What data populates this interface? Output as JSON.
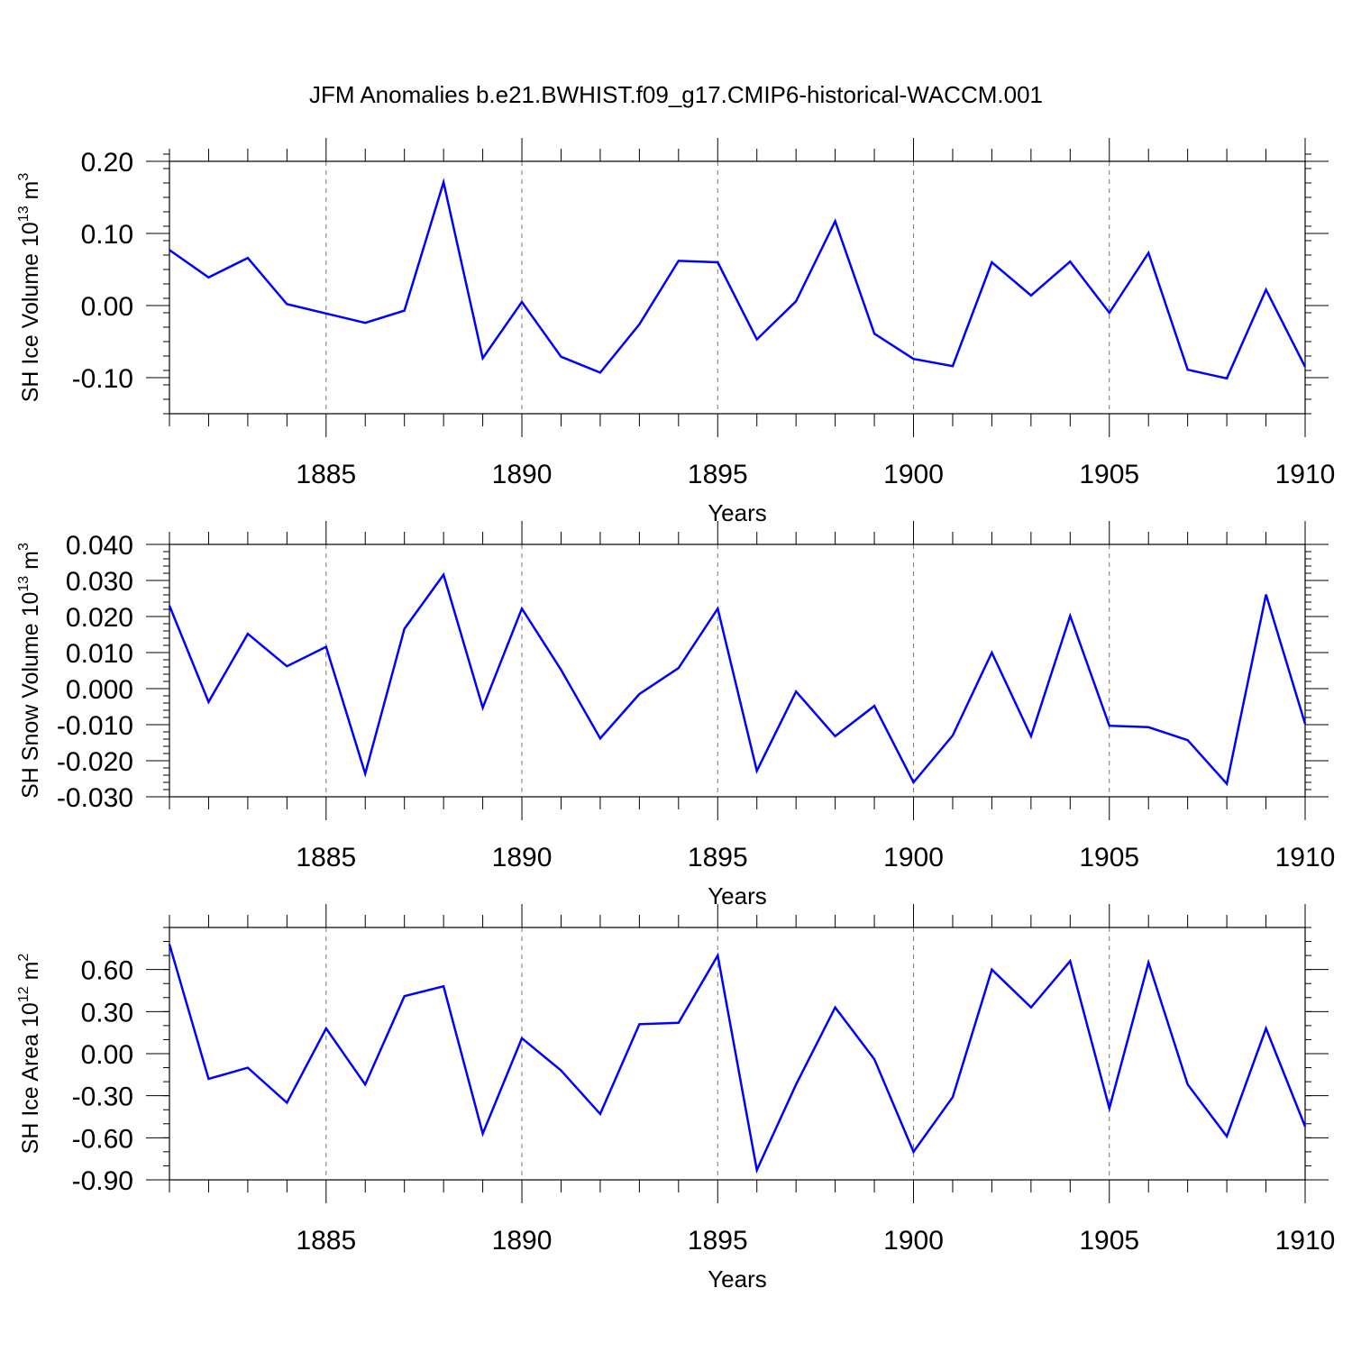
{
  "chart_data": {
    "title": "JFM Anomalies b.e21.BWHIST.f09_g17.CMIP6-historical-WACCM.001",
    "type": "line",
    "x": [
      1881,
      1882,
      1883,
      1884,
      1885,
      1886,
      1887,
      1888,
      1889,
      1890,
      1891,
      1892,
      1893,
      1894,
      1895,
      1896,
      1897,
      1898,
      1899,
      1900,
      1901,
      1902,
      1903,
      1904,
      1905,
      1906,
      1907,
      1908,
      1909,
      1910
    ],
    "xlim": [
      1881,
      1910
    ],
    "x_major_ticks": [
      1885,
      1890,
      1895,
      1900,
      1905,
      1910
    ],
    "grid": "vertical dashed at major x ticks",
    "panels": [
      {
        "key": "ice_volume",
        "xlabel": "Years",
        "ylabel_main": "SH Ice Volume 10",
        "ylabel_exp": "13",
        "ylabel_unit": " m",
        "ylabel_unit_exp": "3",
        "ylim": [
          -0.15,
          0.2
        ],
        "yticks": [
          -0.1,
          0.0,
          0.1,
          0.2
        ],
        "ytick_labels": [
          "-0.10",
          "0.00",
          "0.10",
          "0.20"
        ],
        "minor_step": 0.02,
        "series": [
          {
            "name": "SH Ice Volume",
            "color": "#0000ff",
            "values": [
              0.077,
              0.039,
              0.066,
              0.002,
              -0.011,
              -0.024,
              -0.007,
              0.171,
              -0.073,
              0.005,
              -0.071,
              -0.093,
              -0.026,
              0.062,
              0.06,
              -0.047,
              0.006,
              0.117,
              -0.039,
              -0.074,
              -0.084,
              0.06,
              0.014,
              0.061,
              -0.01,
              0.073,
              -0.089,
              -0.101,
              0.022,
              -0.085
            ]
          }
        ]
      },
      {
        "key": "snow_volume",
        "xlabel": "Years",
        "ylabel_main": "SH Snow Volume 10",
        "ylabel_exp": "13",
        "ylabel_unit": " m",
        "ylabel_unit_exp": "3",
        "ylim": [
          -0.03,
          0.04
        ],
        "yticks": [
          -0.03,
          -0.02,
          -0.01,
          0.0,
          0.01,
          0.02,
          0.03,
          0.04
        ],
        "ytick_labels": [
          "-0.030",
          "-0.020",
          "-0.010",
          "0.000",
          "0.010",
          "0.020",
          "0.030",
          "0.040"
        ],
        "minor_step": 0.002,
        "series": [
          {
            "name": "SH Snow Volume",
            "color": "#0000ff",
            "values": [
              0.023,
              -0.0037,
              0.0152,
              0.0062,
              0.0116,
              -0.0236,
              0.0166,
              0.0316,
              -0.0053,
              0.0222,
              0.0052,
              -0.0138,
              -0.0015,
              0.0057,
              0.0222,
              -0.0228,
              -0.0008,
              -0.0132,
              -0.0048,
              -0.026,
              -0.013,
              0.01,
              -0.0132,
              0.0202,
              -0.0103,
              -0.0107,
              -0.0143,
              -0.0264,
              0.0261,
              -0.0098
            ]
          }
        ]
      },
      {
        "key": "ice_area",
        "xlabel": "Years",
        "ylabel_main": "SH Ice Area 10",
        "ylabel_exp": "12",
        "ylabel_unit": " m",
        "ylabel_unit_exp": "2",
        "ylim": [
          -0.9,
          0.9
        ],
        "yticks": [
          -0.9,
          -0.6,
          -0.3,
          0.0,
          0.3,
          0.6
        ],
        "ytick_labels": [
          "-0.90",
          "-0.60",
          "-0.30",
          "0.00",
          "0.30",
          "0.60"
        ],
        "minor_step": 0.1,
        "series": [
          {
            "name": "SH Ice Area",
            "color": "#0000ff",
            "values": [
              0.78,
              -0.18,
              -0.1,
              -0.35,
              0.18,
              -0.22,
              0.41,
              0.48,
              -0.57,
              0.11,
              -0.12,
              -0.43,
              0.21,
              0.22,
              0.7,
              -0.83,
              -0.22,
              0.33,
              -0.04,
              -0.7,
              -0.31,
              0.6,
              0.33,
              0.66,
              -0.39,
              0.65,
              -0.22,
              -0.59,
              0.18,
              -0.52
            ]
          }
        ]
      }
    ]
  }
}
